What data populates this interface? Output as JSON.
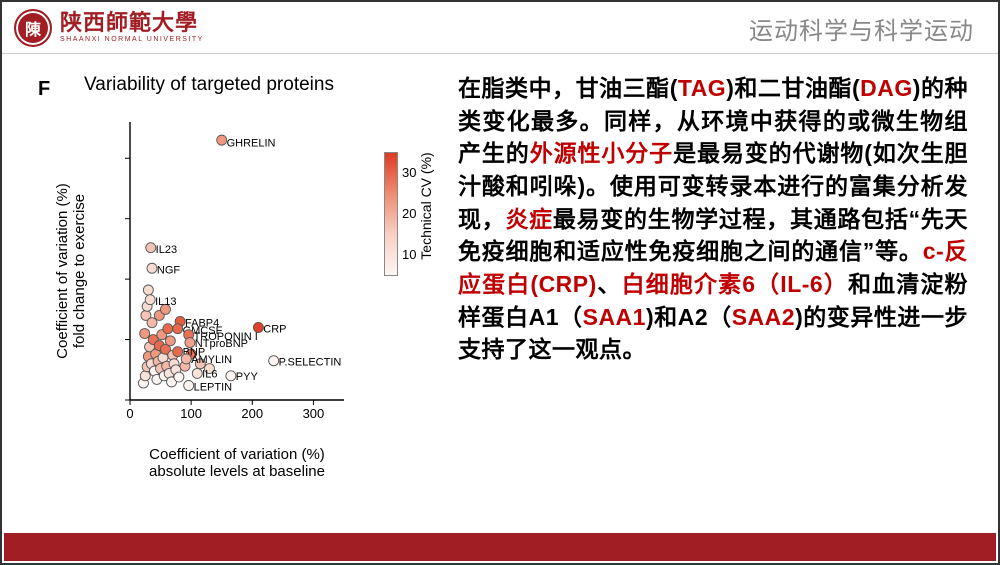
{
  "header": {
    "logo_seal_glyph": "陳",
    "university_cn": "陕西師範大學",
    "university_en": "SHAANXI NORMAL UNIVERSITY",
    "course_title": "运动科学与科学运动"
  },
  "colors": {
    "brand": "#a01e24",
    "highlight": "#c00000",
    "body_text": "#000000",
    "header_sub": "#888888",
    "axis": "#000000",
    "point_stroke": "#555555",
    "slide_border": "#333333"
  },
  "chart": {
    "panel_letter": "F",
    "title": "Variability of targeted proteins",
    "type": "scatter",
    "xlabel": "Coefficient of variation (%)\nabsolute levels at baseline",
    "ylabel": "Coefficient of variation (%)\nfold change to exercise",
    "xlim": [
      0,
      350
    ],
    "ylim": [
      0,
      460
    ],
    "xtick_step": 100,
    "yticks": [
      0,
      100,
      200,
      300,
      400
    ],
    "label_fontsize": 15,
    "tick_fontsize": 13,
    "title_fontsize": 19,
    "marker_radius": 5,
    "marker_stroke": "#555555",
    "background_color": "#ffffff",
    "colorbar": {
      "label": "Technical CV (%)",
      "ticks": [
        10,
        20,
        30
      ],
      "gradient": [
        "#fdf5f2",
        "#f8cfc3",
        "#ef8d72",
        "#dd3a24"
      ]
    },
    "named_points": [
      {
        "x": 150,
        "y": 430,
        "c": "#ef9980",
        "label": "GHRELIN",
        "lx": 158,
        "ly": 426
      },
      {
        "x": 34,
        "y": 252,
        "c": "#f3c3b4",
        "label": "IL23",
        "lx": 42,
        "ly": 250
      },
      {
        "x": 36,
        "y": 218,
        "c": "#f8dcd2",
        "label": "NGF",
        "lx": 44,
        "ly": 216
      },
      {
        "x": 33,
        "y": 166,
        "c": "#f8dcd2",
        "label": "IL13",
        "lx": 41,
        "ly": 164
      },
      {
        "x": 82,
        "y": 130,
        "c": "#e95c3e",
        "label": "FABP4",
        "lx": 90,
        "ly": 128
      },
      {
        "x": 78,
        "y": 118,
        "c": "#e86a4e",
        "label": "GMCSF",
        "lx": 86,
        "ly": 116
      },
      {
        "x": 96,
        "y": 108,
        "c": "#ea7055",
        "label": "TROPONIN I",
        "lx": 104,
        "ly": 106
      },
      {
        "x": 210,
        "y": 120,
        "c": "#de402b",
        "label": "CRP",
        "lx": 218,
        "ly": 118
      },
      {
        "x": 98,
        "y": 95,
        "c": "#f0a28b",
        "label": "NTproBNP",
        "lx": 106,
        "ly": 94
      },
      {
        "x": 78,
        "y": 80,
        "c": "#e86a4e",
        "label": "BNP",
        "lx": 86,
        "ly": 80
      },
      {
        "x": 92,
        "y": 68,
        "c": "#f3b8a6",
        "label": "AMYLIN",
        "lx": 100,
        "ly": 68
      },
      {
        "x": 235,
        "y": 65,
        "c": "#fdf5f2",
        "label": "P.SELECTIN",
        "lx": 243,
        "ly": 64
      },
      {
        "x": 110,
        "y": 44,
        "c": "#f9e2d9",
        "label": "IL6",
        "lx": 118,
        "ly": 44
      },
      {
        "x": 165,
        "y": 40,
        "c": "#fdf5f2",
        "label": "PYY",
        "lx": 173,
        "ly": 40
      },
      {
        "x": 96,
        "y": 24,
        "c": "#fdf5f2",
        "label": "LEPTIN",
        "lx": 104,
        "ly": 22
      }
    ],
    "background_points": [
      {
        "x": 22,
        "y": 28,
        "c": "#fdf5f2"
      },
      {
        "x": 25,
        "y": 40,
        "c": "#f9e2d9"
      },
      {
        "x": 28,
        "y": 55,
        "c": "#f3c3b4"
      },
      {
        "x": 30,
        "y": 72,
        "c": "#ef9980"
      },
      {
        "x": 32,
        "y": 88,
        "c": "#f3c3b4"
      },
      {
        "x": 35,
        "y": 60,
        "c": "#f8dcd2"
      },
      {
        "x": 38,
        "y": 100,
        "c": "#ea7055"
      },
      {
        "x": 40,
        "y": 48,
        "c": "#fdf5f2"
      },
      {
        "x": 42,
        "y": 76,
        "c": "#ef9980"
      },
      {
        "x": 44,
        "y": 34,
        "c": "#fdf5f2"
      },
      {
        "x": 46,
        "y": 64,
        "c": "#f3b8a6"
      },
      {
        "x": 48,
        "y": 90,
        "c": "#e86a4e"
      },
      {
        "x": 50,
        "y": 52,
        "c": "#f3c3b4"
      },
      {
        "x": 52,
        "y": 108,
        "c": "#ef9980"
      },
      {
        "x": 54,
        "y": 70,
        "c": "#f8dcd2"
      },
      {
        "x": 56,
        "y": 40,
        "c": "#fdf5f2"
      },
      {
        "x": 58,
        "y": 84,
        "c": "#ea7055"
      },
      {
        "x": 60,
        "y": 56,
        "c": "#f3b8a6"
      },
      {
        "x": 62,
        "y": 118,
        "c": "#e86a4e"
      },
      {
        "x": 64,
        "y": 44,
        "c": "#f9e2d9"
      },
      {
        "x": 66,
        "y": 98,
        "c": "#ef9980"
      },
      {
        "x": 68,
        "y": 30,
        "c": "#fdf5f2"
      },
      {
        "x": 70,
        "y": 74,
        "c": "#f3c3b4"
      },
      {
        "x": 72,
        "y": 60,
        "c": "#f8dcd2"
      },
      {
        "x": 75,
        "y": 50,
        "c": "#f9e2d9"
      },
      {
        "x": 80,
        "y": 38,
        "c": "#fdf5f2"
      },
      {
        "x": 26,
        "y": 140,
        "c": "#f3c3b4"
      },
      {
        "x": 30,
        "y": 182,
        "c": "#f8dcd2"
      },
      {
        "x": 24,
        "y": 110,
        "c": "#ef9980"
      },
      {
        "x": 36,
        "y": 128,
        "c": "#f3b8a6"
      },
      {
        "x": 28,
        "y": 155,
        "c": "#f8dcd2"
      },
      {
        "x": 48,
        "y": 140,
        "c": "#ef9980"
      },
      {
        "x": 90,
        "y": 56,
        "c": "#f3b8a6"
      },
      {
        "x": 100,
        "y": 76,
        "c": "#ea7055"
      },
      {
        "x": 115,
        "y": 60,
        "c": "#f3c3b4"
      },
      {
        "x": 130,
        "y": 52,
        "c": "#f8dcd2"
      },
      {
        "x": 58,
        "y": 150,
        "c": "#ef9980"
      }
    ]
  },
  "paragraph": {
    "spans": [
      {
        "t": "在脂类中，甘油三酯(",
        "hl": false
      },
      {
        "t": "TAG",
        "hl": true
      },
      {
        "t": ")和二甘油酯(",
        "hl": false
      },
      {
        "t": "DAG",
        "hl": true
      },
      {
        "t": ")的种类变化最多。同样，从环境中获得的或微生物组产生的",
        "hl": false
      },
      {
        "t": "外源性小分子",
        "hl": true
      },
      {
        "t": "是最易变的代谢物(如次生胆汁酸和吲哚)。使用可变转录本进行的富集分析发现，",
        "hl": false
      },
      {
        "t": "炎症",
        "hl": true
      },
      {
        "t": "最易变的生物学过程，其通路包括“先天免疫细胞和适应性免疫细胞之间的通信”等。",
        "hl": false
      },
      {
        "t": "c-反应蛋白(CRP)",
        "hl": true
      },
      {
        "t": "、",
        "hl": false
      },
      {
        "t": "白细胞介素6（IL-6）",
        "hl": true
      },
      {
        "t": "和血清淀粉样蛋白A1（",
        "hl": false
      },
      {
        "t": "SAA1",
        "hl": true
      },
      {
        "t": ")和A2（",
        "hl": false
      },
      {
        "t": "SAA2",
        "hl": true
      },
      {
        "t": ")的变异性进一步支持了这一观点。",
        "hl": false
      }
    ]
  }
}
